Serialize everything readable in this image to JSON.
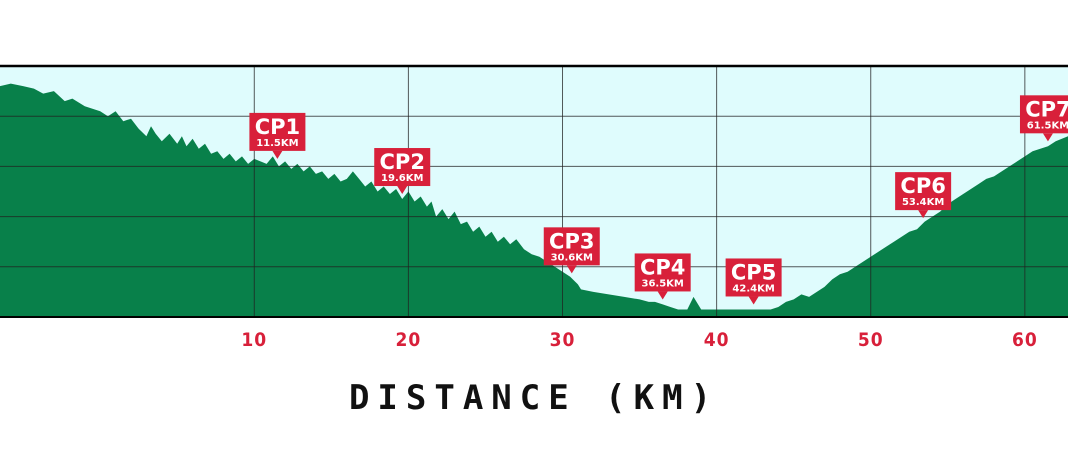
{
  "chart_data": {
    "type": "area",
    "xlabel": "DISTANCE (KM)",
    "ylabel": "",
    "xlim": [
      -6.5,
      62.8
    ],
    "ylim": [
      0,
      100
    ],
    "x_ticks": [
      10,
      20,
      30,
      40,
      50,
      60
    ],
    "x_tick_labels": [
      "10",
      "20",
      "30",
      "40",
      "50",
      "60"
    ],
    "grid": true,
    "colors": {
      "area": "#08804a",
      "sky": "#dffcfd",
      "grid": "#222222",
      "tick_label": "#d8203a",
      "checkpoint": "#d8203a"
    },
    "profile": {
      "x": [
        -6.5,
        -5.8,
        -5,
        -4.3,
        -3.7,
        -3,
        -2.3,
        -1.8,
        -1,
        -0.5,
        0,
        0.5,
        1,
        1.5,
        2,
        2.5,
        3,
        3.3,
        3.6,
        4,
        4.5,
        5,
        5.3,
        5.6,
        6,
        6.4,
        6.8,
        7.2,
        7.6,
        8,
        8.4,
        8.8,
        9.2,
        9.6,
        10,
        10.4,
        10.8,
        11.2,
        11.6,
        12,
        12.4,
        12.8,
        13.2,
        13.6,
        14,
        14.4,
        14.8,
        15.2,
        15.6,
        16,
        16.4,
        16.8,
        17.2,
        17.6,
        18,
        18.4,
        18.8,
        19.2,
        19.6,
        20,
        20.4,
        20.8,
        21.2,
        21.5,
        21.8,
        22.2,
        22.6,
        23,
        23.4,
        23.8,
        24.2,
        24.6,
        25,
        25.4,
        25.8,
        26.2,
        26.6,
        27,
        27.5,
        28,
        28.5,
        29,
        29.5,
        30,
        30.5,
        31,
        31.2,
        32,
        33,
        34,
        35,
        35.6,
        36,
        36.5,
        37,
        37.5,
        37.8,
        38.1,
        38.5,
        39,
        40,
        41,
        42,
        42.5,
        43,
        43.5,
        44,
        44.5,
        45,
        45.5,
        46,
        46.5,
        47,
        47.5,
        48,
        48.5,
        49,
        49.5,
        50,
        50.5,
        51,
        51.5,
        52,
        52.5,
        53,
        53.5,
        54,
        54.5,
        55,
        55.5,
        56,
        56.5,
        57,
        57.5,
        58,
        58.5,
        59,
        59.5,
        60,
        60.5,
        61,
        61.5,
        62,
        62.8
      ],
      "y": [
        92,
        93,
        92,
        91,
        89,
        90,
        86,
        87,
        84,
        83,
        82,
        80,
        82,
        78,
        79,
        75,
        72,
        76,
        73,
        70,
        73,
        69,
        72,
        68,
        71,
        67,
        69,
        65,
        66,
        63,
        65,
        62,
        64,
        61,
        63,
        62,
        61,
        64,
        60,
        62,
        59,
        61,
        58,
        60,
        57,
        58,
        55,
        57,
        54,
        55,
        58,
        55,
        52,
        54,
        50,
        52,
        49,
        51,
        47,
        50,
        46,
        48,
        44,
        46,
        40,
        43,
        39,
        42,
        37,
        38,
        34,
        36,
        32,
        34,
        30,
        32,
        29,
        31,
        27,
        25,
        24,
        22,
        20,
        18,
        16,
        13,
        11,
        10,
        9,
        8,
        7,
        6,
        6,
        5,
        4,
        3,
        3,
        3,
        8,
        3,
        3,
        3,
        3,
        3,
        3,
        3,
        4,
        6,
        7,
        9,
        8,
        10,
        12,
        15,
        17,
        18,
        20,
        22,
        24,
        26,
        28,
        30,
        32,
        34,
        35,
        38,
        40,
        42,
        45,
        47,
        49,
        51,
        53,
        55,
        56,
        58,
        60,
        62,
        64,
        66,
        67,
        68,
        70,
        72
      ]
    },
    "checkpoints": [
      {
        "name": "CP1",
        "label": "11.5KM",
        "km": 11.5
      },
      {
        "name": "CP2",
        "label": "19.6KM",
        "km": 19.6
      },
      {
        "name": "CP3",
        "label": "30.6KM",
        "km": 30.6
      },
      {
        "name": "CP4",
        "label": "36.5KM",
        "km": 36.5
      },
      {
        "name": "CP5",
        "label": "42.4KM",
        "km": 42.4
      },
      {
        "name": "CP6",
        "label": "53.4KM",
        "km": 53.4
      },
      {
        "name": "CP7",
        "label": "61.5KM",
        "km": 61.5
      }
    ]
  }
}
